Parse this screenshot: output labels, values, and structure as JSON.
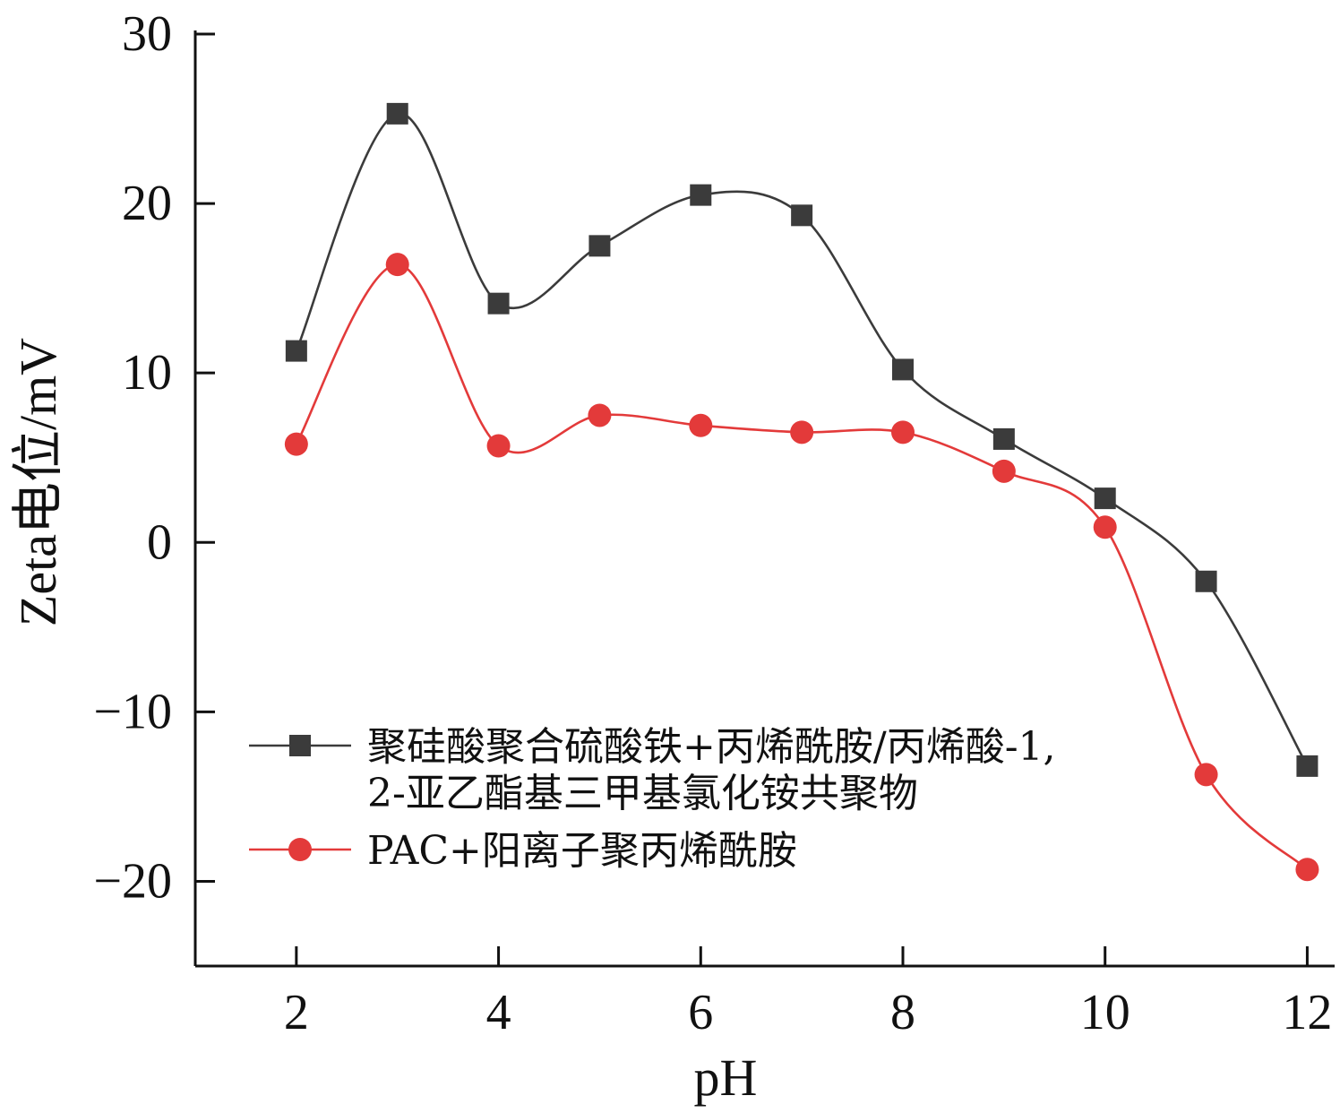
{
  "chart_data": {
    "type": "line",
    "title": "",
    "xlabel": "pH",
    "ylabel": "Zeta电位/mV",
    "xlim": [
      1,
      12.2
    ],
    "ylim": [
      -25,
      30
    ],
    "xticks": [
      2,
      4,
      6,
      8,
      10,
      12
    ],
    "yticks": [
      -20,
      -10,
      0,
      10,
      20,
      30
    ],
    "ytick_labels": [
      "−20",
      "−10",
      "0",
      "10",
      "20",
      "30"
    ],
    "grid": false,
    "legend_position": "bottom-left",
    "x": [
      2,
      3,
      4,
      5,
      6,
      7,
      8,
      9,
      10,
      11,
      12
    ],
    "series": [
      {
        "name_lines": [
          "聚硅酸聚合硫酸铁+丙烯酰胺/丙烯酸-1,",
          "2-亚乙酯基三甲基氯化铵共聚物"
        ],
        "marker": "square",
        "color": "#3b3b3b",
        "values": [
          11.3,
          25.3,
          14.1,
          17.5,
          20.5,
          19.3,
          10.2,
          6.1,
          2.6,
          -2.3,
          -13.2
        ]
      },
      {
        "name": "PAC+阳离子聚丙烯酰胺",
        "marker": "circle",
        "color": "#e33a3a",
        "values": [
          5.8,
          16.4,
          5.7,
          7.5,
          6.9,
          6.5,
          6.5,
          4.2,
          0.9,
          -13.7,
          -19.3
        ]
      }
    ]
  }
}
